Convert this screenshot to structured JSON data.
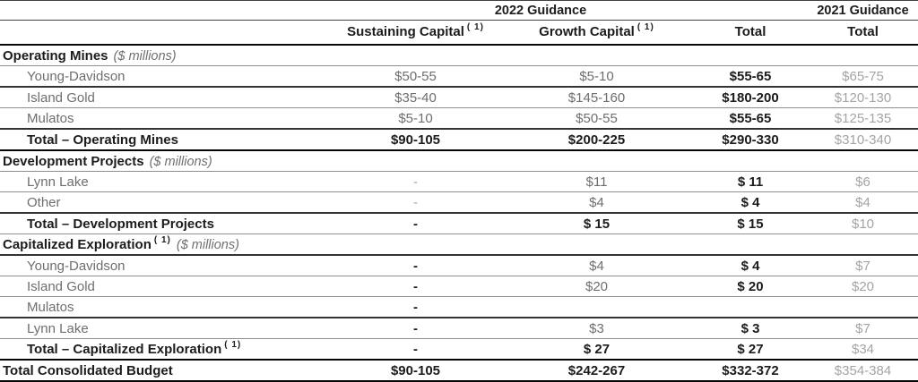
{
  "colors": {
    "text_dark": "#1c1c1c",
    "text_gray": "#6e6e6e",
    "text_light": "#a4a4a4",
    "rule_light": "#8f8f8f",
    "rule_dark": "#333333",
    "rule_black": "#050505"
  },
  "header": {
    "guidance_2022": "2022 Guidance",
    "guidance_2021": "2021 Guidance",
    "columns": [
      {
        "label": "Sustaining Capital",
        "sup": "( 1)"
      },
      {
        "label": "Growth Capital",
        "sup": "( 1)"
      },
      {
        "label": "Total",
        "sup": ""
      },
      {
        "label": "Total",
        "sup": ""
      }
    ]
  },
  "rows": [
    {
      "type": "section",
      "label": "Operating Mines",
      "sup": "",
      "note": "($ millions)",
      "rule": "light"
    },
    {
      "type": "data",
      "label": "Young-Davidson",
      "sup": "",
      "values": [
        "$50-55",
        "$5-10",
        "$55-65",
        "$65-75"
      ],
      "styles": [
        "gray",
        "gray",
        "bold",
        "light"
      ],
      "rule": "dark"
    },
    {
      "type": "data",
      "label": "Island Gold",
      "sup": "",
      "values": [
        "$35-40",
        "$145-160",
        "$180-200",
        "$120-130"
      ],
      "styles": [
        "gray",
        "gray",
        "bold",
        "light"
      ],
      "rule": "light"
    },
    {
      "type": "data",
      "label": "Mulatos",
      "sup": "",
      "values": [
        "$5-10",
        "$50-55",
        "$55-65",
        "$125-135"
      ],
      "styles": [
        "gray",
        "gray",
        "bold",
        "light"
      ],
      "rule": "dark"
    },
    {
      "type": "total",
      "label": "Total – Operating Mines",
      "sup": "",
      "values": [
        "$90-105",
        "$200-225",
        "$290-330",
        "$310-340"
      ],
      "styles": [
        "bold",
        "bold",
        "bold",
        "light"
      ],
      "rule": "black"
    },
    {
      "type": "section",
      "label": "Development Projects",
      "sup": "",
      "note": "($ millions)",
      "rule": "light"
    },
    {
      "type": "data",
      "label": "Lynn Lake",
      "sup": "",
      "values": [
        "-",
        "$11",
        "$ 11",
        "$6"
      ],
      "styles": [
        "light",
        "gray",
        "bold",
        "light"
      ],
      "rule": "light"
    },
    {
      "type": "data",
      "label": "Other",
      "sup": "",
      "values": [
        "-",
        "$4",
        "$ 4",
        "$4"
      ],
      "styles": [
        "light",
        "gray",
        "bold",
        "light"
      ],
      "rule": "dark"
    },
    {
      "type": "total",
      "label": "Total – Development Projects",
      "sup": "",
      "values": [
        "-",
        "$ 15",
        "$ 15",
        "$10"
      ],
      "styles": [
        "bold",
        "bold",
        "bold",
        "light"
      ],
      "rule": "light"
    },
    {
      "type": "section",
      "label": "Capitalized Exploration",
      "sup": "( 1)",
      "note": "($ millions)",
      "rule": "dark"
    },
    {
      "type": "data",
      "label": "Young-Davidson",
      "sup": "",
      "values": [
        "-",
        "$4",
        "$ 4",
        "$7"
      ],
      "styles": [
        "bold",
        "gray",
        "bold",
        "light"
      ],
      "rule": "light"
    },
    {
      "type": "data",
      "label": "Island Gold",
      "sup": "",
      "values": [
        "-",
        "$20",
        "$ 20",
        "$20"
      ],
      "styles": [
        "bold",
        "gray",
        "bold",
        "light"
      ],
      "rule": "light"
    },
    {
      "type": "data",
      "label": "Mulatos",
      "sup": "",
      "values": [
        "-",
        "",
        "",
        ""
      ],
      "styles": [
        "bold",
        "gray",
        "bold",
        "light"
      ],
      "rule": "dark"
    },
    {
      "type": "data",
      "label": "Lynn Lake",
      "sup": "",
      "values": [
        "-",
        "$3",
        "$ 3",
        "$7"
      ],
      "styles": [
        "bold",
        "gray",
        "bold",
        "light"
      ],
      "rule": "light"
    },
    {
      "type": "total",
      "label": "Total – Capitalized Exploration",
      "sup": "( 1)",
      "values": [
        "-",
        "$ 27",
        "$ 27",
        "$34"
      ],
      "styles": [
        "bold",
        "bold",
        "bold",
        "light"
      ],
      "rule": "black"
    },
    {
      "type": "grand",
      "label": "Total Consolidated Budget",
      "sup": "",
      "values": [
        "$90-105",
        "$242-267",
        "$332-372",
        "$354-384"
      ],
      "styles": [
        "bold",
        "bold",
        "bold",
        "light"
      ],
      "rule": "bottom"
    }
  ]
}
